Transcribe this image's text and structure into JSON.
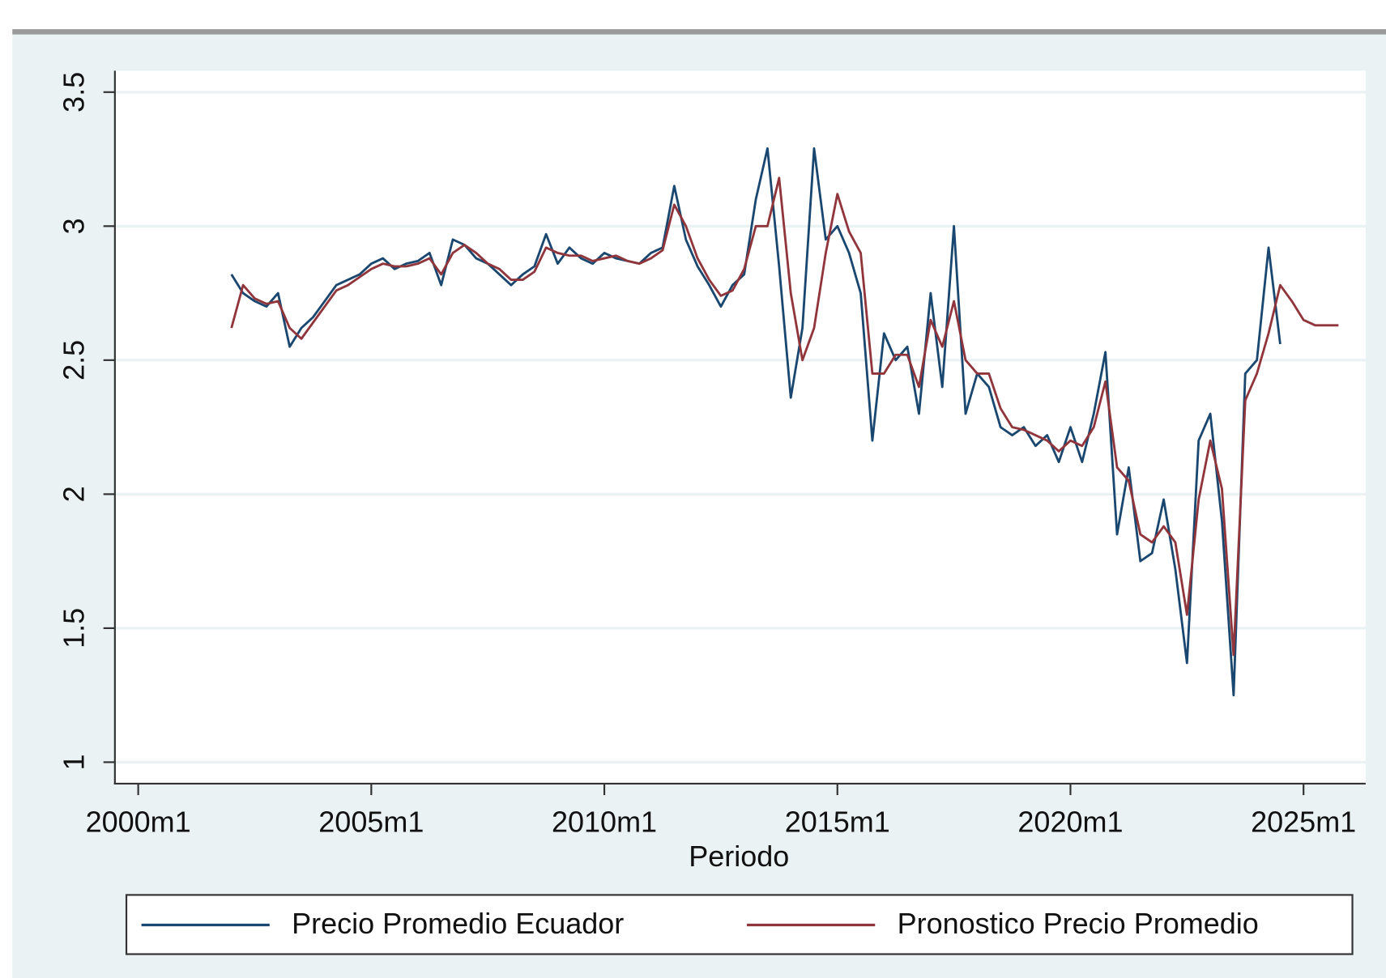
{
  "chart_data": {
    "type": "line",
    "x_label": "Periodo",
    "x": [
      "2002m1",
      "2002m4",
      "2002m7",
      "2002m10",
      "2003m1",
      "2003m4",
      "2003m7",
      "2003m10",
      "2004m1",
      "2004m4",
      "2004m7",
      "2004m10",
      "2005m1",
      "2005m4",
      "2005m7",
      "2005m10",
      "2006m1",
      "2006m4",
      "2006m7",
      "2006m10",
      "2007m1",
      "2007m4",
      "2007m7",
      "2007m10",
      "2008m1",
      "2008m4",
      "2008m7",
      "2008m10",
      "2009m1",
      "2009m4",
      "2009m7",
      "2009m10",
      "2010m1",
      "2010m4",
      "2010m7",
      "2010m10",
      "2011m1",
      "2011m4",
      "2011m7",
      "2011m10",
      "2012m1",
      "2012m4",
      "2012m7",
      "2012m10",
      "2013m1",
      "2013m4",
      "2013m7",
      "2013m10",
      "2014m1",
      "2014m4",
      "2014m7",
      "2014m10",
      "2015m1",
      "2015m4",
      "2015m7",
      "2015m10",
      "2016m1",
      "2016m4",
      "2016m7",
      "2016m10",
      "2017m1",
      "2017m4",
      "2017m7",
      "2017m10",
      "2018m1",
      "2018m4",
      "2018m7",
      "2018m10",
      "2019m1",
      "2019m4",
      "2019m7",
      "2019m10",
      "2020m1",
      "2020m4",
      "2020m7",
      "2020m10",
      "2021m1",
      "2021m4",
      "2021m7",
      "2021m10",
      "2022m1",
      "2022m4",
      "2022m7",
      "2022m10",
      "2023m1",
      "2023m4",
      "2023m7",
      "2023m10",
      "2024m1",
      "2024m4",
      "2024m7",
      "2024m10",
      "2025m1",
      "2025m4",
      "2025m7",
      "2025m10"
    ],
    "series": [
      {
        "name": "Precio Promedio Ecuador",
        "color": "#1a476f",
        "values": [
          2.82,
          2.75,
          2.72,
          2.7,
          2.75,
          2.55,
          2.62,
          2.66,
          2.72,
          2.78,
          2.8,
          2.82,
          2.86,
          2.88,
          2.84,
          2.86,
          2.87,
          2.9,
          2.78,
          2.95,
          2.93,
          2.88,
          2.86,
          2.82,
          2.78,
          2.82,
          2.85,
          2.97,
          2.86,
          2.92,
          2.88,
          2.86,
          2.9,
          2.88,
          2.87,
          2.86,
          2.9,
          2.92,
          3.15,
          2.95,
          2.85,
          2.78,
          2.7,
          2.78,
          2.82,
          3.1,
          3.29,
          2.85,
          2.36,
          2.62,
          3.29,
          2.95,
          3.0,
          2.9,
          2.75,
          2.2,
          2.6,
          2.5,
          2.55,
          2.3,
          2.75,
          2.4,
          3.0,
          2.3,
          2.45,
          2.4,
          2.25,
          2.22,
          2.25,
          2.18,
          2.22,
          2.12,
          2.25,
          2.12,
          2.3,
          2.53,
          1.85,
          2.1,
          1.75,
          1.78,
          1.98,
          1.72,
          1.37,
          2.2,
          2.3,
          1.9,
          1.25,
          2.45,
          2.5,
          2.92,
          2.56,
          null,
          null,
          null,
          null,
          null
        ]
      },
      {
        "name": "Pronostico Precio Promedio",
        "color": "#90353b",
        "values": [
          2.62,
          2.78,
          2.73,
          2.71,
          2.72,
          2.62,
          2.58,
          2.64,
          2.7,
          2.76,
          2.78,
          2.81,
          2.84,
          2.86,
          2.85,
          2.85,
          2.86,
          2.88,
          2.82,
          2.9,
          2.93,
          2.9,
          2.86,
          2.84,
          2.8,
          2.8,
          2.83,
          2.92,
          2.9,
          2.89,
          2.89,
          2.87,
          2.88,
          2.89,
          2.87,
          2.86,
          2.88,
          2.91,
          3.08,
          3.0,
          2.88,
          2.8,
          2.74,
          2.76,
          2.84,
          3.0,
          3.0,
          3.18,
          2.75,
          2.5,
          2.62,
          2.9,
          3.12,
          2.98,
          2.9,
          2.45,
          2.45,
          2.52,
          2.52,
          2.4,
          2.65,
          2.55,
          2.72,
          2.5,
          2.45,
          2.45,
          2.32,
          2.25,
          2.24,
          2.22,
          2.2,
          2.16,
          2.2,
          2.18,
          2.25,
          2.42,
          2.1,
          2.05,
          1.85,
          1.82,
          1.88,
          1.82,
          1.55,
          1.98,
          2.2,
          2.02,
          1.4,
          2.35,
          2.45,
          2.6,
          2.78,
          2.72,
          2.65,
          2.63,
          2.63,
          2.63
        ]
      }
    ],
    "xlim": [
      "1999m7",
      "2026m5"
    ],
    "xticks": [
      "2000m1",
      "2005m1",
      "2010m1",
      "2015m1",
      "2020m1",
      "2025m1"
    ],
    "ylim": [
      0.92,
      3.58
    ],
    "yticks": [
      1,
      1.5,
      2,
      2.5,
      3,
      3.5
    ],
    "grid": true,
    "legend": "bottom"
  }
}
